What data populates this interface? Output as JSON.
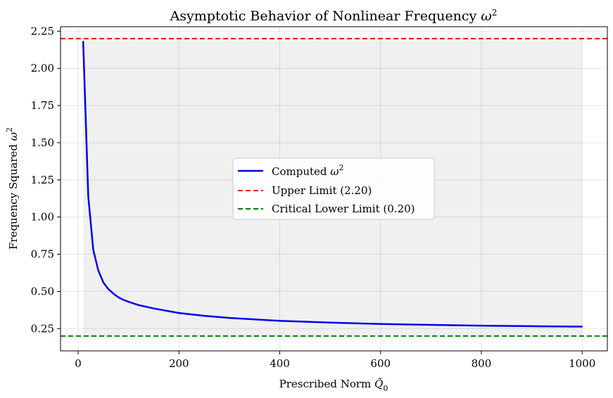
{
  "chart_data": {
    "type": "line",
    "title": "Asymptotic Behavior of Nonlinear Frequency ω²",
    "title_main": "Asymptotic Behavior of Nonlinear Frequency ",
    "title_symbol": "ω",
    "title_sup": "2",
    "xlabel": "Prescribed Norm Q̃",
    "xlabel_main": "Prescribed Norm ",
    "xlabel_symbol": "Q̃",
    "xlabel_sub": "0",
    "ylabel": "Frequency Squared ω²",
    "ylabel_main": "Frequency Squared ",
    "ylabel_symbol": "ω",
    "ylabel_sup": "2",
    "xlim": [
      -35,
      1050
    ],
    "ylim": [
      0.1,
      2.28
    ],
    "xticks": [
      0,
      200,
      400,
      600,
      800,
      1000
    ],
    "xtick_labels": [
      "0",
      "200",
      "400",
      "600",
      "800",
      "1000"
    ],
    "yticks": [
      0.25,
      0.5,
      0.75,
      1.0,
      1.25,
      1.5,
      1.75,
      2.0,
      2.25
    ],
    "ytick_labels": [
      "0.25",
      "0.50",
      "0.75",
      "1.00",
      "1.25",
      "1.50",
      "1.75",
      "2.00",
      "2.25"
    ],
    "grid": true,
    "shaded_region": {
      "x": [
        10,
        1000
      ],
      "y": [
        0.2,
        2.2
      ],
      "color": "#f0f0f0"
    },
    "series": [
      {
        "name": "Computed ω²",
        "legend_main": "Computed ",
        "legend_symbol": "ω",
        "legend_sup": "2",
        "color": "#0000ee",
        "style": "solid",
        "x": [
          10,
          20,
          30,
          40,
          50,
          60,
          70,
          80,
          90,
          100,
          120,
          150,
          200,
          250,
          300,
          400,
          500,
          600,
          700,
          800,
          900,
          1000
        ],
        "y": [
          2.18,
          1.14,
          0.78,
          0.64,
          0.56,
          0.515,
          0.485,
          0.46,
          0.443,
          0.43,
          0.408,
          0.385,
          0.355,
          0.336,
          0.322,
          0.302,
          0.29,
          0.281,
          0.275,
          0.27,
          0.266,
          0.263
        ]
      }
    ],
    "reference_lines": [
      {
        "name": "Upper Limit (2.20)",
        "y": 2.2,
        "color": "#ee0000",
        "style": "dashed"
      },
      {
        "name": "Critical Lower Limit (0.20)",
        "y": 0.2,
        "color": "#008000",
        "style": "dashed"
      }
    ],
    "legend_position": "center"
  }
}
